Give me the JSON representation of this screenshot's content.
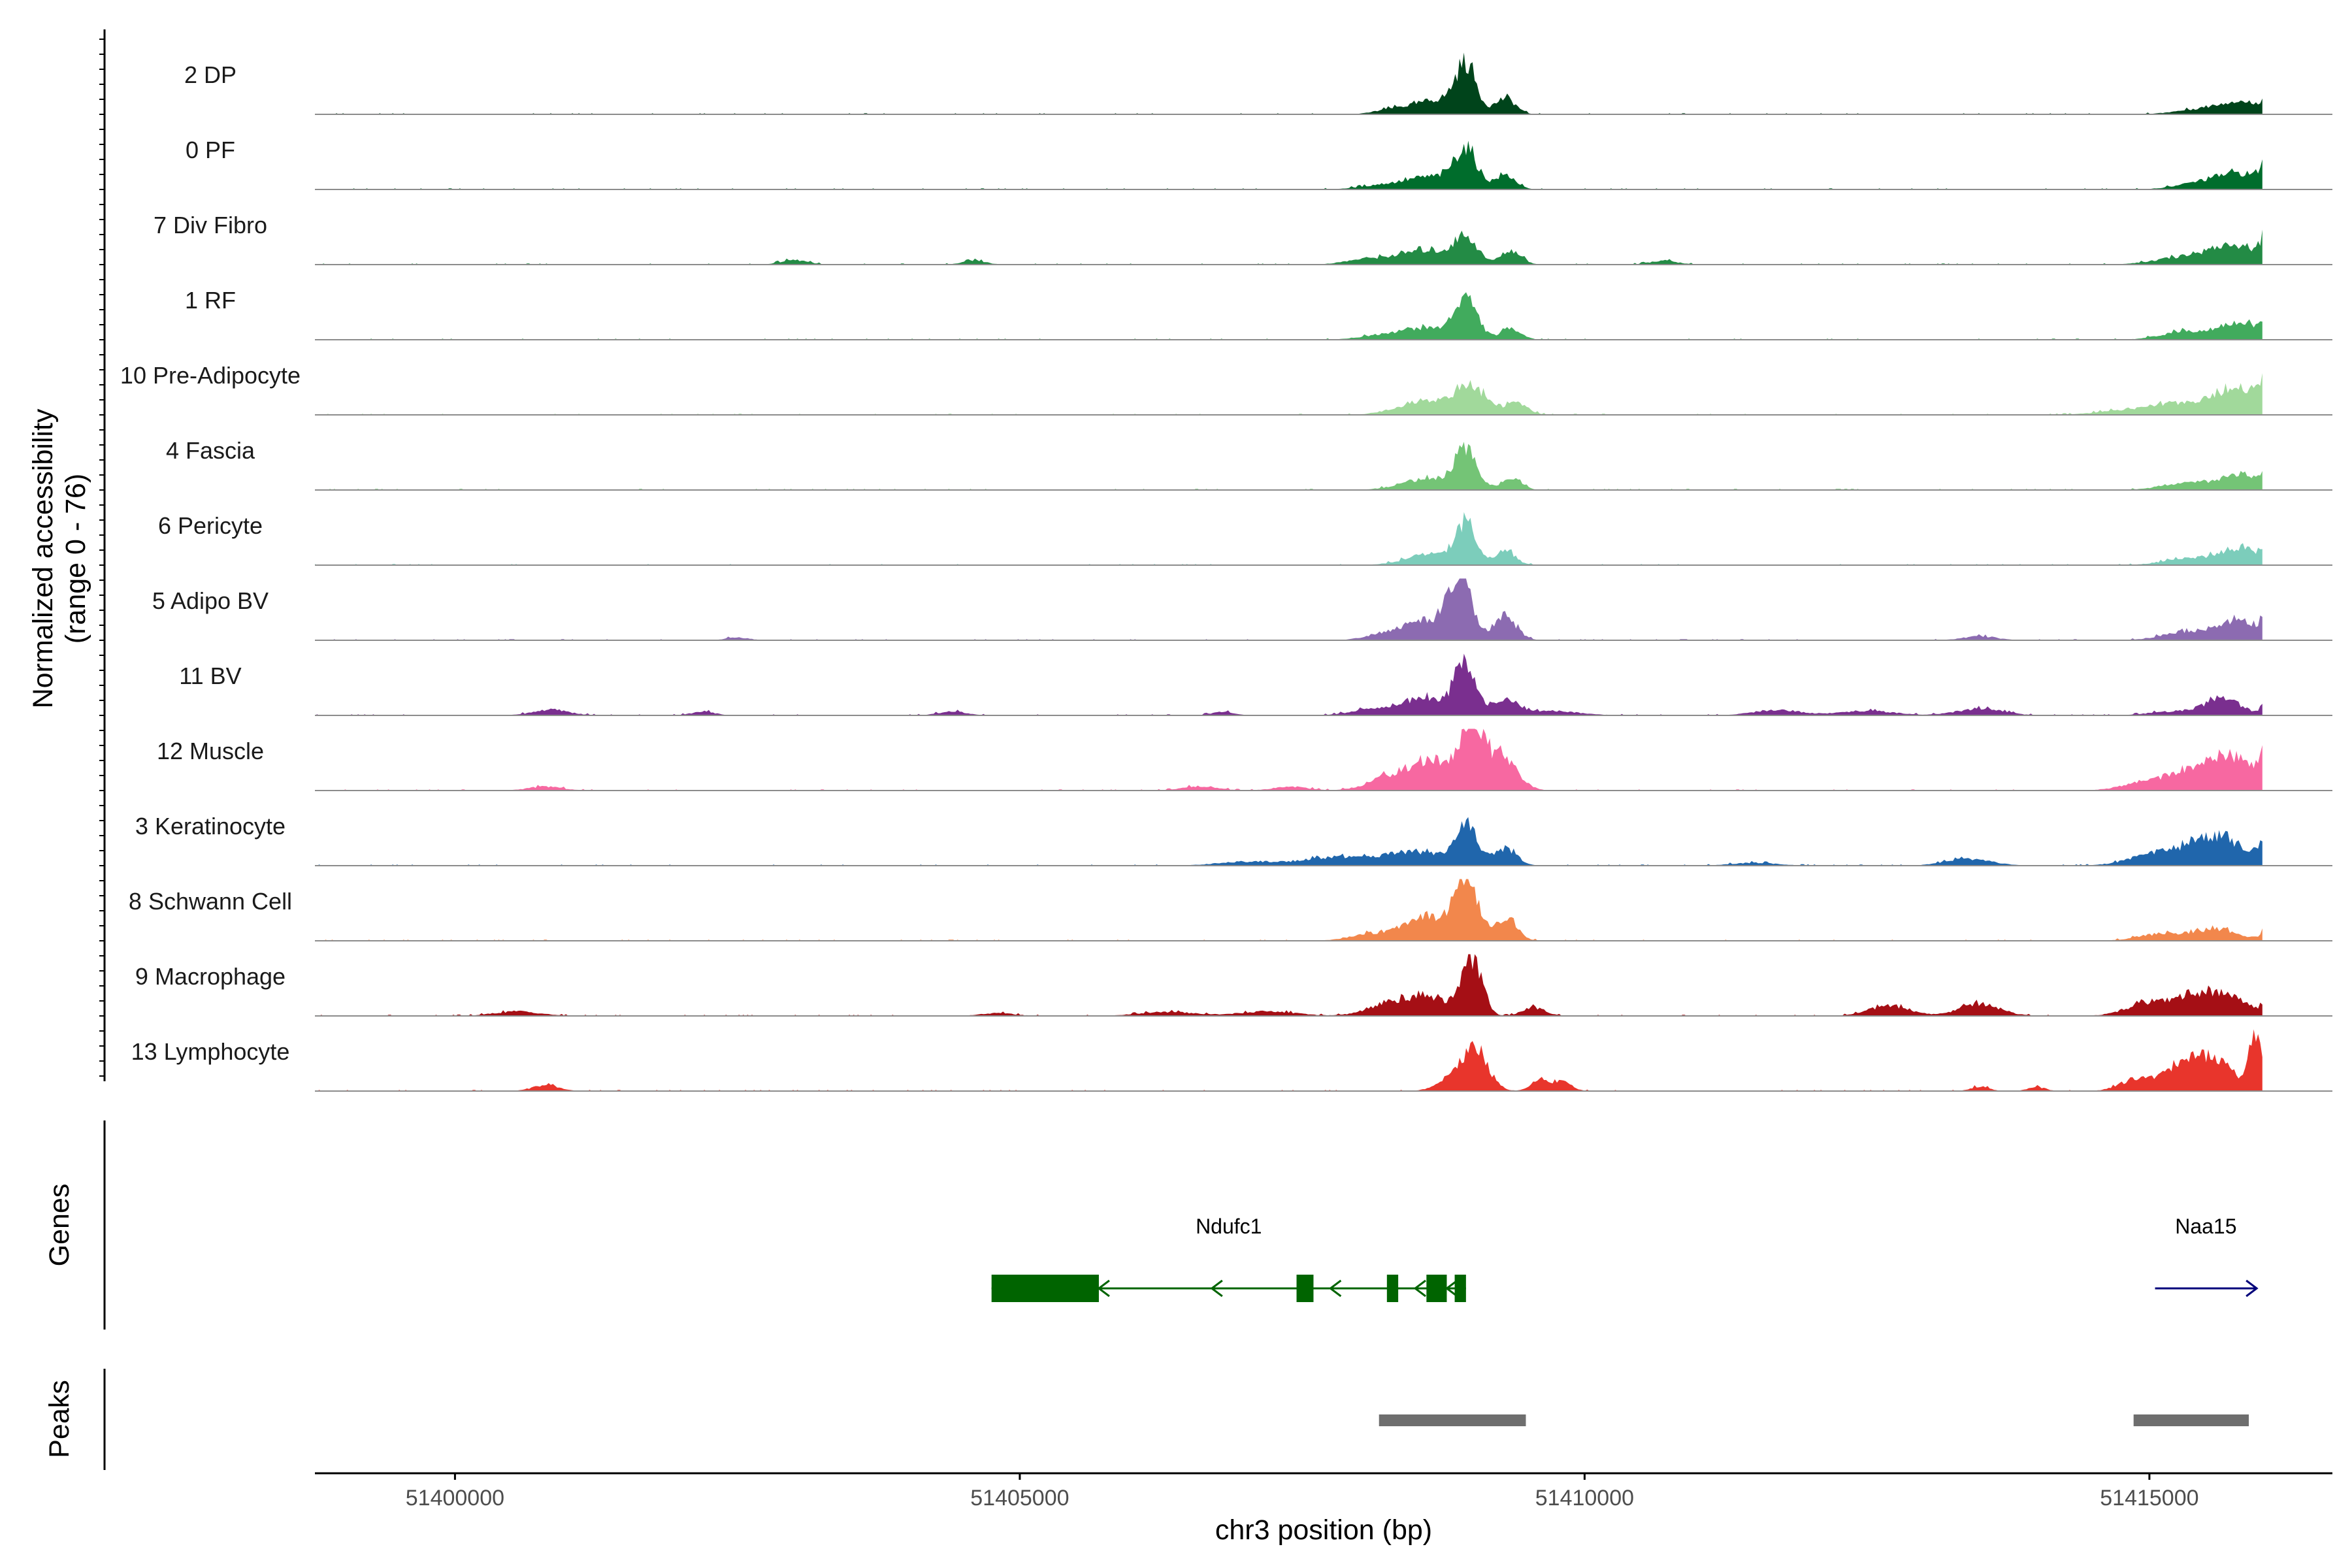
{
  "chart_data": {
    "type": "area",
    "y_axis_title_line1": "Normalized accessibility",
    "y_axis_title_line2": "(range 0 - 76)",
    "y_range": [
      0,
      76
    ],
    "x_axis_title": "chr3 position (bp)",
    "x_range": [
      51398760,
      51416620
    ],
    "x_ticks": [
      {
        "value": 51400000,
        "label": "51400000"
      },
      {
        "value": 51405000,
        "label": "51405000"
      },
      {
        "value": 51410000,
        "label": "51410000"
      },
      {
        "value": 51415000,
        "label": "51415000"
      }
    ],
    "tracks_panel_title": "",
    "genes_panel_title": "Genes",
    "peaks_panel_title": "Peaks",
    "series": [
      {
        "name": "2 DP",
        "color": "#00441b",
        "peaks": [
          [
            51409300,
            0.28,
            90
          ],
          [
            51408950,
            0.8,
            90
          ],
          [
            51408700,
            0.25,
            200
          ],
          [
            51408300,
            0.08,
            150
          ],
          [
            51416100,
            0.7,
            60
          ],
          [
            51415800,
            0.22,
            200
          ],
          [
            51415400,
            0.07,
            200
          ]
        ]
      },
      {
        "name": "0 PF",
        "color": "#006d2c",
        "peaks": [
          [
            51409300,
            0.25,
            90
          ],
          [
            51408950,
            0.65,
            100
          ],
          [
            51408650,
            0.22,
            220
          ],
          [
            51408200,
            0.07,
            200
          ],
          [
            51416100,
            0.85,
            70
          ],
          [
            51415800,
            0.28,
            220
          ],
          [
            51415400,
            0.08,
            200
          ]
        ]
      },
      {
        "name": "7 Div Fibro",
        "color": "#238b45",
        "peaks": [
          [
            51409350,
            0.25,
            90
          ],
          [
            51408950,
            0.45,
            100
          ],
          [
            51408600,
            0.25,
            220
          ],
          [
            51408100,
            0.1,
            200
          ],
          [
            51416100,
            1.0,
            70
          ],
          [
            51415750,
            0.32,
            220
          ],
          [
            51415300,
            0.12,
            250
          ],
          [
            51403000,
            0.08,
            120
          ],
          [
            51404600,
            0.07,
            100
          ],
          [
            51410700,
            0.07,
            120
          ]
        ]
      },
      {
        "name": "1 RF",
        "color": "#41ab5d",
        "peaks": [
          [
            51409350,
            0.2,
            90
          ],
          [
            51408950,
            0.7,
            100
          ],
          [
            51408600,
            0.2,
            220
          ],
          [
            51408200,
            0.07,
            200
          ],
          [
            51416100,
            0.65,
            60
          ],
          [
            51415800,
            0.3,
            200
          ],
          [
            51415300,
            0.14,
            200
          ]
        ]
      },
      {
        "name": "10 Pre-Adipocyte",
        "color": "#a1d99b",
        "peaks": [
          [
            51409400,
            0.2,
            100
          ],
          [
            51409000,
            0.45,
            140
          ],
          [
            51408600,
            0.25,
            240
          ],
          [
            51416100,
            0.95,
            80
          ],
          [
            51415800,
            0.45,
            200
          ],
          [
            51415300,
            0.2,
            250
          ],
          [
            51414800,
            0.08,
            250
          ]
        ]
      },
      {
        "name": "4 Fascia",
        "color": "#74c476",
        "peaks": [
          [
            51409350,
            0.2,
            90
          ],
          [
            51408950,
            0.65,
            100
          ],
          [
            51408600,
            0.2,
            220
          ],
          [
            51416100,
            0.65,
            60
          ],
          [
            51415800,
            0.25,
            200
          ],
          [
            51415300,
            0.12,
            200
          ]
        ]
      },
      {
        "name": "6 Pericyte",
        "color": "#7ccdbb",
        "peaks": [
          [
            51409300,
            0.25,
            90
          ],
          [
            51408950,
            0.7,
            90
          ],
          [
            51408650,
            0.2,
            220
          ],
          [
            51416100,
            0.55,
            60
          ],
          [
            51415800,
            0.3,
            200
          ],
          [
            51415300,
            0.1,
            200
          ]
        ]
      },
      {
        "name": "5 Adipo BV",
        "color": "#8c6bb1",
        "peaks": [
          [
            51409300,
            0.4,
            100
          ],
          [
            51408900,
            1.0,
            100
          ],
          [
            51408600,
            0.35,
            200
          ],
          [
            51408200,
            0.1,
            150
          ],
          [
            51416100,
            0.75,
            60
          ],
          [
            51415800,
            0.35,
            200
          ],
          [
            51415300,
            0.14,
            200
          ],
          [
            51413500,
            0.07,
            150
          ],
          [
            51402500,
            0.05,
            100
          ]
        ]
      },
      {
        "name": "11 BV",
        "color": "#7a2f8f",
        "peaks": [
          [
            51409300,
            0.28,
            100
          ],
          [
            51408950,
            0.9,
            90
          ],
          [
            51408600,
            0.32,
            220
          ],
          [
            51408100,
            0.1,
            180
          ],
          [
            51416100,
            0.75,
            60
          ],
          [
            51415650,
            0.3,
            160
          ],
          [
            51415200,
            0.07,
            200
          ],
          [
            51400850,
            0.1,
            160
          ],
          [
            51402200,
            0.07,
            100
          ],
          [
            51404400,
            0.07,
            120
          ],
          [
            51406800,
            0.06,
            100
          ],
          [
            51411700,
            0.1,
            200
          ],
          [
            51412500,
            0.08,
            250
          ],
          [
            51413500,
            0.12,
            200
          ],
          [
            51409700,
            0.08,
            250
          ]
        ]
      },
      {
        "name": "12 Muscle",
        "color": "#f768a1",
        "peaks": [
          [
            51409250,
            0.6,
            140
          ],
          [
            51409000,
            1.0,
            90
          ],
          [
            51408700,
            0.5,
            200
          ],
          [
            51408300,
            0.25,
            200
          ],
          [
            51416100,
            1.0,
            80
          ],
          [
            51415750,
            0.45,
            220
          ],
          [
            51415400,
            0.3,
            250
          ],
          [
            51414950,
            0.12,
            200
          ],
          [
            51400800,
            0.07,
            150
          ],
          [
            51406600,
            0.08,
            150
          ],
          [
            51407400,
            0.07,
            150
          ]
        ]
      },
      {
        "name": "3 Keratinocyte",
        "color": "#2066ac",
        "peaks": [
          [
            51409300,
            0.3,
            100
          ],
          [
            51408950,
            0.65,
            100
          ],
          [
            51408500,
            0.25,
            250
          ],
          [
            51407800,
            0.15,
            300
          ],
          [
            51407000,
            0.07,
            250
          ],
          [
            51416100,
            0.9,
            80
          ],
          [
            51415600,
            0.5,
            220
          ],
          [
            51415100,
            0.22,
            250
          ],
          [
            51413400,
            0.12,
            200
          ],
          [
            51411500,
            0.05,
            200
          ]
        ]
      },
      {
        "name": "8 Schwann Cell",
        "color": "#f2874c",
        "peaks": [
          [
            51409300,
            0.4,
            100
          ],
          [
            51408950,
            1.0,
            100
          ],
          [
            51408600,
            0.45,
            200
          ],
          [
            51408100,
            0.12,
            180
          ],
          [
            51416100,
            0.65,
            60
          ],
          [
            51415600,
            0.2,
            200
          ],
          [
            51415100,
            0.12,
            200
          ]
        ]
      },
      {
        "name": "9 Macrophage",
        "color": "#a50f15",
        "peaks": [
          [
            51409000,
            1.0,
            90
          ],
          [
            51408650,
            0.3,
            160
          ],
          [
            51408300,
            0.25,
            200
          ],
          [
            51409550,
            0.15,
            100
          ],
          [
            51416100,
            0.6,
            60
          ],
          [
            51415700,
            0.3,
            180
          ],
          [
            51415400,
            0.28,
            200
          ],
          [
            51415000,
            0.22,
            200
          ],
          [
            51413500,
            0.22,
            180
          ],
          [
            51412700,
            0.18,
            180
          ],
          [
            51400550,
            0.08,
            200
          ],
          [
            51404800,
            0.05,
            150
          ],
          [
            51406300,
            0.07,
            250
          ],
          [
            51407200,
            0.08,
            250
          ]
        ]
      },
      {
        "name": "13 Lymphocyte",
        "color": "#e8352c",
        "peaks": [
          [
            51409050,
            0.5,
            110
          ],
          [
            51408900,
            0.35,
            150
          ],
          [
            51409600,
            0.18,
            80
          ],
          [
            51409800,
            0.18,
            80
          ],
          [
            51415950,
            1.0,
            60
          ],
          [
            51415600,
            0.55,
            150
          ],
          [
            51415300,
            0.45,
            150
          ],
          [
            51414900,
            0.22,
            150
          ],
          [
            51400800,
            0.1,
            120
          ],
          [
            51413500,
            0.08,
            80
          ],
          [
            51414000,
            0.07,
            80
          ]
        ]
      }
    ],
    "genes": [
      {
        "name": "Ndufc1",
        "strand": "-",
        "color": "#006400",
        "start": 51404750,
        "end": 51408950,
        "exons": [
          [
            51404750,
            51405700
          ],
          [
            51407450,
            51407600
          ],
          [
            51408250,
            51408350
          ],
          [
            51408600,
            51408780
          ],
          [
            51408850,
            51408950
          ]
        ],
        "arrows": [
          51405700,
          51406700,
          51407750,
          51408500,
          51408780
        ]
      },
      {
        "name": "Naa15",
        "strand": "+",
        "color": "#00007a",
        "start": 51415050,
        "end": 51415950,
        "exons": [],
        "arrows": [
          51415950
        ]
      }
    ],
    "peak_regions": [
      {
        "start": 51408180,
        "end": 51409480,
        "color": "#6e6e6e"
      },
      {
        "start": 51414860,
        "end": 51415880,
        "color": "#6e6e6e"
      }
    ]
  }
}
